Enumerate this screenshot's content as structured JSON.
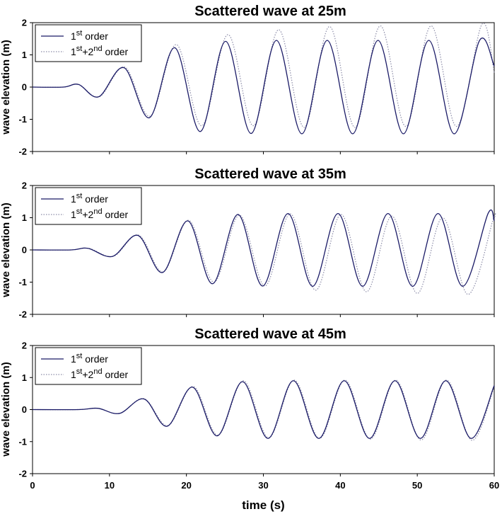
{
  "chart_data": [
    {
      "type": "line",
      "title": "Scattered wave at 25m",
      "ylabel": "wave elevation (m)",
      "xlabel": "",
      "xlim": [
        0,
        60
      ],
      "ylim": [
        -2,
        2
      ],
      "yticks": [
        "-2",
        "-1",
        "0",
        "1",
        "2"
      ],
      "xticks": [],
      "grid": false,
      "legend": "top-left",
      "series": [
        {
          "name": "1st order",
          "legend_base": "1",
          "legend_sup": "st",
          "legend_rest": " order",
          "color": "#1a1a66",
          "style": "solid",
          "x": [
            0,
            4,
            6,
            8.6,
            11.9,
            15.2,
            18.5,
            21.8,
            25.1,
            28.4,
            31.7,
            35.0,
            38.3,
            41.6,
            44.9,
            48.2,
            51.5,
            54.8,
            58.1,
            60
          ],
          "y": [
            0,
            0,
            0.08,
            -0.3,
            0.6,
            -0.95,
            1.22,
            -1.38,
            1.42,
            -1.44,
            1.45,
            -1.45,
            1.45,
            -1.45,
            1.45,
            -1.45,
            1.45,
            -1.45,
            1.45,
            0.65
          ]
        },
        {
          "name": "1st+2nd order",
          "legend_base": "1",
          "legend_sup": "st",
          "legend_mid": "+2",
          "legend_sup2": "nd",
          "legend_rest": " order",
          "color": "#8c8ca8",
          "style": "dotted",
          "x": [
            0,
            4,
            6,
            8.7,
            12.0,
            15.3,
            18.7,
            22.0,
            25.4,
            28.7,
            32.0,
            35.3,
            38.6,
            41.9,
            45.2,
            48.5,
            51.8,
            55.1,
            58.4,
            60
          ],
          "y": [
            0,
            0,
            0.08,
            -0.3,
            0.62,
            -0.9,
            1.32,
            -1.2,
            1.63,
            -1.2,
            1.78,
            -1.25,
            1.88,
            -1.25,
            1.9,
            -1.22,
            1.9,
            -1.22,
            1.95,
            0.45
          ]
        }
      ]
    },
    {
      "type": "line",
      "title": "Scattered wave at 35m",
      "ylabel": "wave elevation (m)",
      "xlabel": "",
      "xlim": [
        0,
        60
      ],
      "ylim": [
        -2,
        2
      ],
      "yticks": [
        "-2",
        "-1",
        "0",
        "1",
        "2"
      ],
      "xticks": [],
      "grid": false,
      "legend": "top-left",
      "series": [
        {
          "name": "1st order",
          "legend_base": "1",
          "legend_sup": "st",
          "legend_rest": " order",
          "color": "#1a1a66",
          "style": "solid",
          "x": [
            0,
            5,
            7.2,
            10.4,
            13.7,
            16.9,
            20.2,
            23.4,
            26.7,
            29.9,
            33.2,
            36.4,
            39.7,
            42.9,
            46.2,
            49.4,
            52.7,
            55.9,
            59.2,
            60
          ],
          "y": [
            0,
            0,
            0.05,
            -0.2,
            0.45,
            -0.7,
            0.9,
            -1.05,
            1.1,
            -1.12,
            1.13,
            -1.13,
            1.13,
            -1.13,
            1.13,
            -1.13,
            1.13,
            -1.13,
            1.13,
            0.9
          ]
        },
        {
          "name": "1st+2nd order",
          "legend_base": "1",
          "legend_sup": "st",
          "legend_mid": "+2",
          "legend_sup2": "nd",
          "legend_rest": " order",
          "color": "#8c8ca8",
          "style": "dotted",
          "x": [
            0,
            5,
            7.3,
            10.5,
            13.8,
            17.0,
            20.3,
            23.6,
            26.9,
            30.2,
            33.5,
            36.8,
            40.1,
            43.4,
            46.7,
            50.0,
            53.3,
            56.6,
            59.9,
            60
          ],
          "y": [
            0,
            0,
            0.05,
            -0.2,
            0.46,
            -0.68,
            0.92,
            -1.0,
            1.08,
            -1.12,
            1.12,
            -1.25,
            1.1,
            -1.3,
            1.05,
            -1.35,
            1.0,
            -1.38,
            0.98,
            0.95
          ]
        }
      ]
    },
    {
      "type": "line",
      "title": "Scattered wave at 45m",
      "ylabel": "wave elevation (m)",
      "xlabel": "time (s)",
      "xlim": [
        0,
        60
      ],
      "ylim": [
        -2,
        2
      ],
      "yticks": [
        "-2",
        "-1",
        "0",
        "1",
        "2"
      ],
      "xticks": [
        "0",
        "10",
        "20",
        "30",
        "40",
        "50",
        "60"
      ],
      "grid": false,
      "legend": "top-left",
      "series": [
        {
          "name": "1st order",
          "legend_base": "1",
          "legend_sup": "st",
          "legend_rest": " order",
          "color": "#1a1a66",
          "style": "solid",
          "x": [
            0,
            6,
            8.5,
            11.3,
            14.5,
            17.5,
            20.8,
            24.0,
            27.3,
            30.6,
            33.9,
            37.2,
            40.5,
            43.8,
            47.1,
            50.4,
            53.7,
            57.0,
            60
          ],
          "y": [
            0,
            0,
            0.04,
            -0.12,
            0.33,
            -0.52,
            0.7,
            -0.82,
            0.87,
            -0.9,
            0.9,
            -0.9,
            0.9,
            -0.9,
            0.9,
            -0.9,
            0.9,
            -0.9,
            0.75
          ]
        },
        {
          "name": "1st+2nd order",
          "legend_base": "1",
          "legend_sup": "st",
          "legend_mid": "+2",
          "legend_sup2": "nd",
          "legend_rest": " order",
          "color": "#8c8ca8",
          "style": "dotted",
          "x": [
            0,
            6,
            8.5,
            11.3,
            14.5,
            17.6,
            20.9,
            24.1,
            27.4,
            30.7,
            34.0,
            37.3,
            40.6,
            43.9,
            47.2,
            50.5,
            53.8,
            57.1,
            60
          ],
          "y": [
            0,
            0,
            0.04,
            -0.12,
            0.34,
            -0.5,
            0.72,
            -0.8,
            0.9,
            -0.88,
            0.92,
            -0.9,
            0.92,
            -0.92,
            0.92,
            -0.95,
            0.92,
            -0.96,
            0.7
          ]
        }
      ]
    }
  ]
}
